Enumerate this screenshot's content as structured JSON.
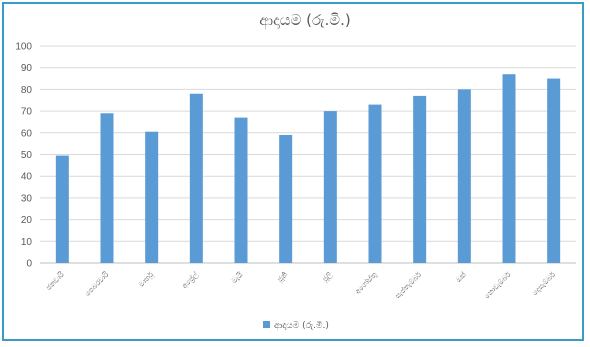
{
  "chart_data": {
    "type": "bar",
    "title": "ආදායම (රු.මි.)",
    "categories": [
      "ජනවාරි",
      "පෙබරවාරි",
      "මාර්තු",
      "අප්‍රේල්",
      "මැයි",
      "ජූනි",
      "ජූලි",
      "අගෝස්තු",
      "සැප්තැම්බර්",
      "ඔක්",
      "නොවැම්බර්",
      "දෙසැම්බර්"
    ],
    "series": [
      {
        "name": "ආදායම (රු.මි.)",
        "values": [
          49.5,
          69,
          60.5,
          78,
          67,
          59,
          70,
          73,
          77,
          80,
          87,
          85
        ],
        "color": "#5b9bd5"
      }
    ],
    "ylim": [
      0,
      100
    ],
    "yticks": [
      0,
      10,
      20,
      30,
      40,
      50,
      60,
      70,
      80,
      90,
      100
    ],
    "grid": true,
    "legend": "bottom",
    "colors": {
      "border": "#3a9bc8",
      "grid": "#d9d9d9",
      "text": "#595959"
    }
  }
}
